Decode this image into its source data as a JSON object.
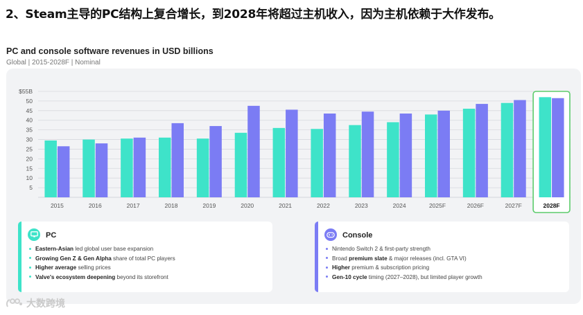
{
  "headline": "2、Steam主导的PC结构上复合增长，到2028年将超过主机收入，因为主机依赖于大作发布。",
  "chart": {
    "title": "PC and console software revenues in USD billions",
    "subtitle": "Global | 2015-2028F | Nominal"
  },
  "colors": {
    "pc": "#3ee3c9",
    "console": "#7b7cf4",
    "highlight": "#5ccc6b"
  },
  "chart_data": {
    "type": "bar",
    "categories": [
      "2015",
      "2016",
      "2017",
      "2018",
      "2019",
      "2020",
      "2021",
      "2022",
      "2023",
      "2024",
      "2025F",
      "2026F",
      "2027F",
      "2028F"
    ],
    "series": [
      {
        "name": "PC",
        "values": [
          29.5,
          30,
          30.5,
          31,
          30.5,
          33.5,
          36,
          35.5,
          37.5,
          39,
          43,
          46,
          49,
          52
        ]
      },
      {
        "name": "Console",
        "values": [
          26.5,
          28,
          31,
          38.5,
          37,
          47.5,
          45.5,
          43.5,
          44.5,
          43.5,
          45,
          48.5,
          50.5,
          51.5
        ]
      }
    ],
    "y_ticks": [
      "5",
      "10",
      "15",
      "20",
      "25",
      "30",
      "35",
      "40",
      "45",
      "50",
      "$55B"
    ],
    "ylim": [
      0,
      55
    ],
    "highlight_category": "2028F",
    "grid": true
  },
  "cards": {
    "pc": {
      "title": "PC",
      "icon": "pc-monitor-icon",
      "bullets": [
        {
          "bold": "Eastern-Asian",
          "rest": " led global user base expansion"
        },
        {
          "bold": "Growing Gen Z & Gen Alpha",
          "rest": " share of  total PC players"
        },
        {
          "bold": "Higher average",
          "rest": " selling prices"
        },
        {
          "bold": "Valve's ecosystem deepening",
          "rest": " beyond its storefront"
        }
      ]
    },
    "console": {
      "title": "Console",
      "icon": "gamepad-icon",
      "bullets": [
        {
          "bold": "",
          "rest": "Nintendo Switch 2 &  first-party strength"
        },
        {
          "bold": "",
          "rest": "Broad ",
          "bold2": "premium slate",
          "rest2": " & major releases (incl. GTA VI)"
        },
        {
          "bold": "Higher",
          "rest": " premium &  subscription pricing"
        },
        {
          "bold": "Gen-10 cycle",
          "rest": " timing (2027–2028), but limited player growth"
        }
      ]
    }
  },
  "watermark": "大数跨境"
}
